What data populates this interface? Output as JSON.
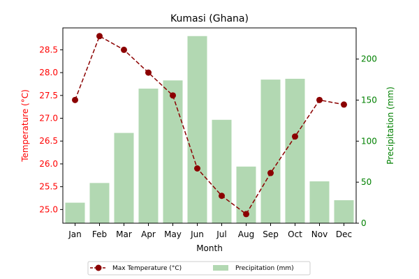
{
  "chart_data": {
    "type": "bar+line",
    "title": "Kumasi (Ghana)",
    "xlabel": "Month",
    "categories": [
      "Jan",
      "Feb",
      "Mar",
      "Apr",
      "May",
      "Jun",
      "Jul",
      "Aug",
      "Sep",
      "Oct",
      "Nov",
      "Dec"
    ],
    "y_left": {
      "label": "Temperature (°C)",
      "lim": [
        24.7,
        28.98
      ],
      "ticks": [
        "25.0",
        "25.5",
        "26.0",
        "26.5",
        "27.0",
        "27.5",
        "28.0",
        "28.5"
      ],
      "color": "#ff0000"
    },
    "y_right": {
      "label": "Precipitation (mm)",
      "lim": [
        0,
        238
      ],
      "ticks": [
        "0",
        "50",
        "100",
        "150",
        "200"
      ],
      "color": "#008000"
    },
    "series": [
      {
        "name": "Max Temperature (°C)",
        "type": "line",
        "axis": "left",
        "color": "#8b0000",
        "style": "dashed",
        "marker": "circle",
        "values": [
          27.4,
          28.8,
          28.5,
          28.0,
          27.5,
          25.9,
          25.3,
          24.9,
          25.8,
          26.6,
          27.4,
          27.3
        ]
      },
      {
        "name": "Precipitation (mm)",
        "type": "bar",
        "axis": "right",
        "color": "#b2d8b2",
        "values": [
          25,
          49,
          110,
          164,
          174,
          228,
          126,
          69,
          175,
          176,
          51,
          28
        ]
      }
    ],
    "legend": {
      "placement": "bottom-center",
      "entries": [
        "Max Temperature (°C)",
        "Precipitation (mm)"
      ]
    },
    "grid": false
  }
}
